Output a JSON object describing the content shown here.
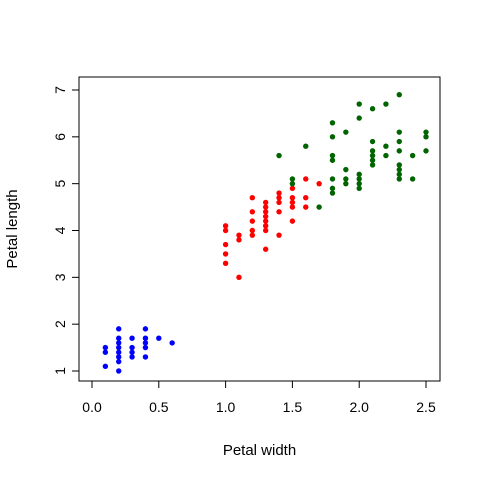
{
  "chart_data": {
    "type": "scatter",
    "title": "",
    "xlabel": "Petal width",
    "ylabel": "Petal length",
    "xlim": [
      -0.0,
      2.6
    ],
    "ylim": [
      0.8,
      7.1
    ],
    "xticks": [
      0.0,
      0.5,
      1.0,
      1.5,
      2.0,
      2.5
    ],
    "xtick_labels": [
      "0.0",
      "0.5",
      "1.0",
      "1.5",
      "2.0",
      "2.5"
    ],
    "yticks": [
      1,
      2,
      3,
      4,
      5,
      6,
      7
    ],
    "ytick_labels": [
      "1",
      "2",
      "3",
      "4",
      "5",
      "6",
      "7"
    ],
    "grid": false,
    "legend": "none",
    "series": [
      {
        "color": "#0000ff",
        "points": [
          [
            0.1,
            1.1
          ],
          [
            0.1,
            1.4
          ],
          [
            0.1,
            1.5
          ],
          [
            0.2,
            1.0
          ],
          [
            0.2,
            1.2
          ],
          [
            0.2,
            1.3
          ],
          [
            0.2,
            1.4
          ],
          [
            0.2,
            1.5
          ],
          [
            0.2,
            1.6
          ],
          [
            0.2,
            1.7
          ],
          [
            0.2,
            1.9
          ],
          [
            0.3,
            1.3
          ],
          [
            0.3,
            1.4
          ],
          [
            0.3,
            1.5
          ],
          [
            0.3,
            1.7
          ],
          [
            0.4,
            1.3
          ],
          [
            0.4,
            1.5
          ],
          [
            0.4,
            1.6
          ],
          [
            0.4,
            1.7
          ],
          [
            0.4,
            1.9
          ],
          [
            0.5,
            1.7
          ],
          [
            0.6,
            1.6
          ]
        ]
      },
      {
        "color": "#ff0000",
        "points": [
          [
            1.0,
            3.3
          ],
          [
            1.0,
            3.5
          ],
          [
            1.0,
            3.7
          ],
          [
            1.0,
            4.0
          ],
          [
            1.0,
            4.1
          ],
          [
            1.1,
            3.0
          ],
          [
            1.1,
            3.8
          ],
          [
            1.1,
            3.9
          ],
          [
            1.2,
            3.9
          ],
          [
            1.2,
            4.0
          ],
          [
            1.2,
            4.2
          ],
          [
            1.2,
            4.4
          ],
          [
            1.2,
            4.7
          ],
          [
            1.3,
            3.6
          ],
          [
            1.3,
            4.0
          ],
          [
            1.3,
            4.1
          ],
          [
            1.3,
            4.2
          ],
          [
            1.3,
            4.3
          ],
          [
            1.3,
            4.4
          ],
          [
            1.3,
            4.5
          ],
          [
            1.3,
            4.6
          ],
          [
            1.4,
            3.9
          ],
          [
            1.4,
            4.4
          ],
          [
            1.4,
            4.6
          ],
          [
            1.4,
            4.7
          ],
          [
            1.4,
            4.8
          ],
          [
            1.5,
            4.2
          ],
          [
            1.5,
            4.5
          ],
          [
            1.5,
            4.6
          ],
          [
            1.5,
            4.7
          ],
          [
            1.5,
            4.9
          ],
          [
            1.6,
            4.5
          ],
          [
            1.6,
            4.7
          ],
          [
            1.6,
            5.1
          ],
          [
            1.7,
            5.0
          ]
        ]
      },
      {
        "color": "#006400",
        "points": [
          [
            1.4,
            5.6
          ],
          [
            1.5,
            5.0
          ],
          [
            1.5,
            5.1
          ],
          [
            1.6,
            5.8
          ],
          [
            1.7,
            4.5
          ],
          [
            1.8,
            4.8
          ],
          [
            1.8,
            4.9
          ],
          [
            1.8,
            5.1
          ],
          [
            1.8,
            5.5
          ],
          [
            1.8,
            5.6
          ],
          [
            1.8,
            6.0
          ],
          [
            1.8,
            6.3
          ],
          [
            1.9,
            5.0
          ],
          [
            1.9,
            5.1
          ],
          [
            1.9,
            5.3
          ],
          [
            1.9,
            6.1
          ],
          [
            2.0,
            4.9
          ],
          [
            2.0,
            5.0
          ],
          [
            2.0,
            5.1
          ],
          [
            2.0,
            5.2
          ],
          [
            2.0,
            6.4
          ],
          [
            2.0,
            6.7
          ],
          [
            2.1,
            5.4
          ],
          [
            2.1,
            5.5
          ],
          [
            2.1,
            5.6
          ],
          [
            2.1,
            5.7
          ],
          [
            2.1,
            5.9
          ],
          [
            2.1,
            6.6
          ],
          [
            2.2,
            5.6
          ],
          [
            2.2,
            5.8
          ],
          [
            2.2,
            6.7
          ],
          [
            2.3,
            5.1
          ],
          [
            2.3,
            5.2
          ],
          [
            2.3,
            5.3
          ],
          [
            2.3,
            5.4
          ],
          [
            2.3,
            5.7
          ],
          [
            2.3,
            5.9
          ],
          [
            2.3,
            6.1
          ],
          [
            2.3,
            6.9
          ],
          [
            2.4,
            5.1
          ],
          [
            2.4,
            5.6
          ],
          [
            2.5,
            5.7
          ],
          [
            2.5,
            6.0
          ],
          [
            2.5,
            6.1
          ]
        ]
      }
    ]
  }
}
